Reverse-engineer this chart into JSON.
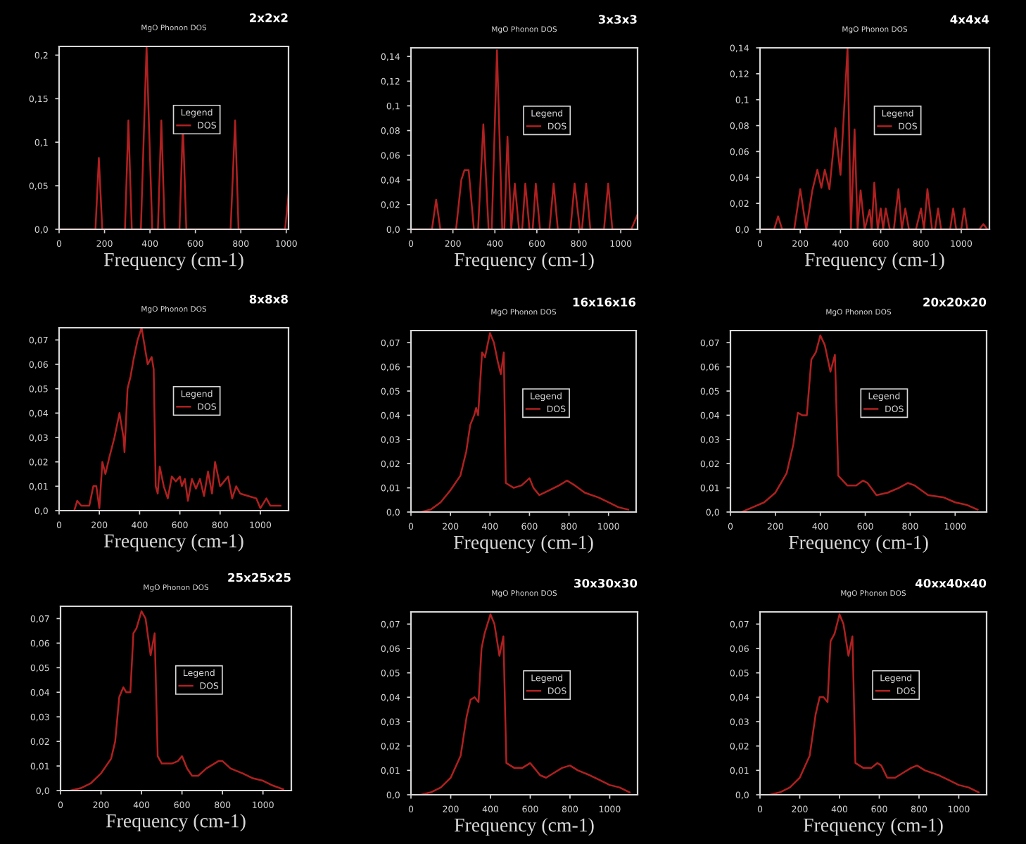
{
  "chart_data": [
    {
      "type": "line",
      "title": "MgO Phonon DOS",
      "subtitle": "2x2x2",
      "xlabel": "Frequency (cm-1)",
      "legend_title": "Legend",
      "legend": "center",
      "marker": "none",
      "line_style": "solid",
      "grid": false,
      "xlim": [
        0,
        1010
      ],
      "xticks": [
        0,
        200,
        400,
        600,
        800,
        1000
      ],
      "ylim": [
        0,
        0.21
      ],
      "yticks": [
        {
          "value": 0,
          "label": "0,0"
        },
        {
          "value": 0.05,
          "label": "0,05"
        },
        {
          "value": 0.1,
          "label": "0,1"
        },
        {
          "value": 0.15,
          "label": "0,15"
        },
        {
          "value": 0.2,
          "label": "0,2"
        }
      ],
      "series": [
        {
          "name": "DOS",
          "color": "#b02020",
          "x": [
            0,
            160,
            175,
            190,
            290,
            305,
            320,
            360,
            385,
            410,
            435,
            450,
            465,
            530,
            545,
            560,
            755,
            775,
            790,
            995,
            1010
          ],
          "values": [
            0,
            0,
            0.082,
            0,
            0,
            0.125,
            0,
            0,
            0.21,
            0,
            0,
            0.125,
            0,
            0,
            0.12,
            0,
            0,
            0.125,
            0,
            0,
            0.04
          ]
        }
      ]
    },
    {
      "type": "line",
      "title": "MgO Phonon DOS",
      "subtitle": "3x3x3",
      "xlabel": "Frequency (cm-1)",
      "legend_title": "Legend",
      "legend": "center",
      "marker": "none",
      "line_style": "solid",
      "grid": false,
      "xlim": [
        0,
        1080
      ],
      "xticks": [
        0,
        200,
        400,
        600,
        800,
        1000
      ],
      "ylim": [
        0,
        0.147
      ],
      "yticks": [
        {
          "value": 0,
          "label": "0,0"
        },
        {
          "value": 0.02,
          "label": "0,02"
        },
        {
          "value": 0.04,
          "label": "0,04"
        },
        {
          "value": 0.06,
          "label": "0,06"
        },
        {
          "value": 0.08,
          "label": "0,08"
        },
        {
          "value": 0.1,
          "label": "0,1"
        },
        {
          "value": 0.12,
          "label": "0,12"
        },
        {
          "value": 0.14,
          "label": "0,14"
        }
      ],
      "series": [
        {
          "name": "DOS",
          "color": "#b02020",
          "x": [
            0,
            100,
            120,
            140,
            215,
            240,
            255,
            275,
            300,
            320,
            345,
            370,
            385,
            410,
            435,
            445,
            460,
            478,
            495,
            515,
            530,
            545,
            565,
            580,
            595,
            615,
            660,
            680,
            700,
            760,
            780,
            805,
            815,
            835,
            855,
            920,
            940,
            960,
            1050,
            1080
          ],
          "values": [
            0,
            0,
            0.024,
            0,
            0,
            0.04,
            0.048,
            0.048,
            0,
            0,
            0.085,
            0,
            0,
            0.145,
            0,
            0,
            0.075,
            0,
            0.037,
            0,
            0,
            0.037,
            0,
            0,
            0.037,
            0,
            0,
            0.037,
            0,
            0,
            0.037,
            0,
            0,
            0.037,
            0,
            0,
            0.037,
            0,
            0,
            0.012
          ]
        }
      ]
    },
    {
      "type": "line",
      "title": "MgO Phonon DOS",
      "subtitle": "4x4x4",
      "xlabel": "Frequency (cm-1)",
      "legend_title": "Legend",
      "legend": "center",
      "marker": "none",
      "line_style": "solid",
      "grid": false,
      "xlim": [
        0,
        1140
      ],
      "xticks": [
        0,
        200,
        400,
        600,
        800,
        1000
      ],
      "ylim": [
        0,
        0.14
      ],
      "yticks": [
        {
          "value": 0,
          "label": "0,0"
        },
        {
          "value": 0.02,
          "label": "0,02"
        },
        {
          "value": 0.04,
          "label": "0,04"
        },
        {
          "value": 0.06,
          "label": "0,06"
        },
        {
          "value": 0.08,
          "label": "0,08"
        },
        {
          "value": 0.1,
          "label": "0,1"
        },
        {
          "value": 0.12,
          "label": "0,12"
        },
        {
          "value": 0.14,
          "label": "0,14"
        }
      ],
      "series": [
        {
          "name": "DOS",
          "color": "#b02020",
          "x": [
            0,
            70,
            90,
            110,
            170,
            200,
            230,
            260,
            285,
            305,
            322,
            345,
            375,
            400,
            435,
            452,
            470,
            485,
            500,
            520,
            545,
            555,
            568,
            585,
            600,
            612,
            625,
            645,
            665,
            688,
            705,
            722,
            740,
            775,
            800,
            815,
            832,
            855,
            870,
            885,
            900,
            945,
            960,
            975,
            1000,
            1015,
            1030,
            1090,
            1110,
            1130
          ],
          "values": [
            0,
            0,
            0.01,
            0,
            0,
            0.031,
            0,
            0.03,
            0.046,
            0.032,
            0.046,
            0.031,
            0.078,
            0.042,
            0.14,
            0,
            0.077,
            0,
            0.03,
            0,
            0.015,
            0,
            0.036,
            0,
            0.016,
            0,
            0.016,
            0,
            0,
            0.031,
            0,
            0.016,
            0,
            0,
            0.016,
            0,
            0.031,
            0,
            0,
            0.016,
            0,
            0,
            0.016,
            0,
            0,
            0.016,
            0,
            0,
            0.004,
            0
          ]
        }
      ]
    },
    {
      "type": "line",
      "title": "MgO Phonon DOS",
      "subtitle": "8x8x8",
      "xlabel": "Frequency (cm-1)",
      "legend_title": "Legend",
      "legend": "center",
      "marker": "none",
      "line_style": "solid",
      "grid": false,
      "xlim": [
        0,
        1140
      ],
      "xticks": [
        0,
        200,
        400,
        600,
        800,
        1000
      ],
      "ylim": [
        0,
        0.075
      ],
      "yticks": [
        {
          "value": 0,
          "label": "0,0"
        },
        {
          "value": 0.01,
          "label": "0,01"
        },
        {
          "value": 0.02,
          "label": "0,02"
        },
        {
          "value": 0.03,
          "label": "0,03"
        },
        {
          "value": 0.04,
          "label": "0,04"
        },
        {
          "value": 0.05,
          "label": "0,05"
        },
        {
          "value": 0.06,
          "label": "0,06"
        },
        {
          "value": 0.07,
          "label": "0,07"
        }
      ],
      "series": [
        {
          "name": "DOS",
          "color": "#b02020",
          "x": [
            75,
            90,
            110,
            150,
            170,
            185,
            200,
            215,
            230,
            250,
            275,
            300,
            320,
            325,
            340,
            355,
            370,
            390,
            410,
            420,
            440,
            460,
            470,
            480,
            490,
            500,
            520,
            540,
            560,
            580,
            600,
            610,
            625,
            640,
            660,
            680,
            700,
            720,
            740,
            760,
            775,
            800,
            820,
            840,
            860,
            880,
            900,
            940,
            980,
            1000,
            1030,
            1050,
            1100
          ],
          "values": [
            0,
            0.004,
            0.002,
            0.002,
            0.01,
            0.01,
            0.001,
            0.02,
            0.015,
            0.022,
            0.03,
            0.04,
            0.03,
            0.024,
            0.05,
            0.055,
            0.062,
            0.07,
            0.075,
            0.07,
            0.06,
            0.063,
            0.058,
            0.01,
            0.007,
            0.018,
            0.01,
            0.005,
            0.014,
            0.012,
            0.014,
            0.01,
            0.013,
            0.004,
            0.013,
            0.009,
            0.013,
            0.006,
            0.016,
            0.007,
            0.02,
            0.01,
            0.012,
            0.014,
            0.005,
            0.01,
            0.007,
            0.006,
            0.005,
            0.001,
            0.005,
            0.002,
            0.002
          ]
        }
      ]
    },
    {
      "type": "line",
      "title": "MgO Phonon DOS",
      "subtitle": "16x16x16",
      "xlabel": "Frequency (cm-1)",
      "legend_title": "Legend",
      "legend": "center",
      "marker": "none",
      "line_style": "solid",
      "grid": false,
      "xlim": [
        0,
        1140
      ],
      "xticks": [
        0,
        200,
        400,
        600,
        800,
        1000
      ],
      "ylim": [
        0,
        0.075
      ],
      "yticks": [
        {
          "value": 0,
          "label": "0,0"
        },
        {
          "value": 0.01,
          "label": "0,01"
        },
        {
          "value": 0.02,
          "label": "0,02"
        },
        {
          "value": 0.03,
          "label": "0,03"
        },
        {
          "value": 0.04,
          "label": "0,04"
        },
        {
          "value": 0.05,
          "label": "0,05"
        },
        {
          "value": 0.06,
          "label": "0,06"
        },
        {
          "value": 0.07,
          "label": "0,07"
        }
      ],
      "series": [
        {
          "name": "DOS",
          "color": "#b02020",
          "x": [
            50,
            100,
            150,
            200,
            250,
            280,
            300,
            320,
            330,
            340,
            360,
            375,
            390,
            400,
            420,
            440,
            455,
            470,
            480,
            520,
            560,
            600,
            620,
            650,
            700,
            750,
            790,
            830,
            880,
            950,
            1000,
            1050,
            1100
          ],
          "values": [
            0,
            0.001,
            0.004,
            0.009,
            0.015,
            0.025,
            0.036,
            0.04,
            0.043,
            0.04,
            0.066,
            0.064,
            0.07,
            0.074,
            0.07,
            0.062,
            0.057,
            0.066,
            0.012,
            0.01,
            0.011,
            0.014,
            0.01,
            0.007,
            0.009,
            0.011,
            0.013,
            0.011,
            0.008,
            0.006,
            0.004,
            0.002,
            0.001
          ]
        }
      ]
    },
    {
      "type": "line",
      "title": "MgO Phonon DOS",
      "subtitle": "20x20x20",
      "xlabel": "Frequency (cm-1)",
      "legend_title": "Legend",
      "legend": "center",
      "marker": "none",
      "line_style": "solid",
      "grid": false,
      "xlim": [
        0,
        1140
      ],
      "xticks": [
        0,
        200,
        400,
        600,
        800,
        1000
      ],
      "ylim": [
        0,
        0.075
      ],
      "yticks": [
        {
          "value": 0,
          "label": "0,0"
        },
        {
          "value": 0.01,
          "label": "0,01"
        },
        {
          "value": 0.02,
          "label": "0,02"
        },
        {
          "value": 0.03,
          "label": "0,03"
        },
        {
          "value": 0.04,
          "label": "0,04"
        },
        {
          "value": 0.05,
          "label": "0,05"
        },
        {
          "value": 0.06,
          "label": "0,06"
        },
        {
          "value": 0.07,
          "label": "0,07"
        }
      ],
      "series": [
        {
          "name": "DOS",
          "color": "#b02020",
          "x": [
            50,
            100,
            150,
            200,
            250,
            280,
            300,
            320,
            340,
            360,
            380,
            400,
            420,
            445,
            465,
            480,
            520,
            560,
            590,
            610,
            650,
            700,
            750,
            790,
            820,
            880,
            950,
            1000,
            1050,
            1100
          ],
          "values": [
            0,
            0.002,
            0.004,
            0.008,
            0.016,
            0.028,
            0.041,
            0.04,
            0.04,
            0.063,
            0.066,
            0.073,
            0.069,
            0.058,
            0.065,
            0.015,
            0.011,
            0.011,
            0.013,
            0.012,
            0.007,
            0.008,
            0.01,
            0.012,
            0.011,
            0.007,
            0.006,
            0.004,
            0.003,
            0.001
          ]
        }
      ]
    },
    {
      "type": "line",
      "title": "MgO Phonon DOS",
      "subtitle": "25x25x25",
      "xlabel": "Frequency (cm-1)",
      "legend_title": "Legend",
      "legend": "center",
      "marker": "none",
      "line_style": "solid",
      "grid": false,
      "xlim": [
        0,
        1140
      ],
      "xticks": [
        0,
        200,
        400,
        600,
        800,
        1000
      ],
      "ylim": [
        0,
        0.075
      ],
      "yticks": [
        {
          "value": 0,
          "label": "0,0"
        },
        {
          "value": 0.01,
          "label": "0,01"
        },
        {
          "value": 0.02,
          "label": "0,02"
        },
        {
          "value": 0.03,
          "label": "0,03"
        },
        {
          "value": 0.04,
          "label": "0,04"
        },
        {
          "value": 0.05,
          "label": "0,05"
        },
        {
          "value": 0.06,
          "label": "0,06"
        },
        {
          "value": 0.07,
          "label": "0,07"
        }
      ],
      "series": [
        {
          "name": "DOS",
          "color": "#b02020",
          "x": [
            50,
            100,
            150,
            200,
            250,
            270,
            290,
            310,
            325,
            345,
            360,
            375,
            400,
            420,
            445,
            465,
            480,
            500,
            550,
            580,
            600,
            625,
            650,
            680,
            720,
            780,
            800,
            840,
            900,
            950,
            1000,
            1050,
            1100
          ],
          "values": [
            0,
            0.001,
            0.003,
            0.007,
            0.013,
            0.02,
            0.038,
            0.042,
            0.04,
            0.04,
            0.064,
            0.066,
            0.073,
            0.07,
            0.055,
            0.064,
            0.014,
            0.011,
            0.011,
            0.012,
            0.014,
            0.009,
            0.006,
            0.006,
            0.009,
            0.012,
            0.012,
            0.009,
            0.007,
            0.005,
            0.004,
            0.002,
            0.0005
          ]
        }
      ]
    },
    {
      "type": "line",
      "title": "MgO Phonon DOS",
      "subtitle": "30x30x30",
      "xlabel": "Frequency (cm-1)",
      "legend_title": "Legend",
      "legend": "center",
      "marker": "none",
      "line_style": "solid",
      "grid": false,
      "xlim": [
        0,
        1140
      ],
      "xticks": [
        0,
        200,
        400,
        600,
        800,
        1000
      ],
      "ylim": [
        0,
        0.075
      ],
      "yticks": [
        {
          "value": 0,
          "label": "0,0"
        },
        {
          "value": 0.01,
          "label": "0,01"
        },
        {
          "value": 0.02,
          "label": "0,02"
        },
        {
          "value": 0.03,
          "label": "0,03"
        },
        {
          "value": 0.04,
          "label": "0,04"
        },
        {
          "value": 0.05,
          "label": "0,05"
        },
        {
          "value": 0.06,
          "label": "0,06"
        },
        {
          "value": 0.07,
          "label": "0,07"
        }
      ],
      "series": [
        {
          "name": "DOS",
          "color": "#b02020",
          "x": [
            50,
            100,
            150,
            200,
            250,
            280,
            300,
            320,
            340,
            355,
            370,
            400,
            420,
            445,
            465,
            480,
            520,
            560,
            600,
            620,
            650,
            680,
            720,
            760,
            800,
            840,
            900,
            950,
            1000,
            1050,
            1100
          ],
          "values": [
            0,
            0.001,
            0.003,
            0.007,
            0.016,
            0.032,
            0.039,
            0.04,
            0.038,
            0.06,
            0.066,
            0.074,
            0.07,
            0.057,
            0.065,
            0.013,
            0.011,
            0.011,
            0.013,
            0.011,
            0.008,
            0.007,
            0.009,
            0.011,
            0.012,
            0.01,
            0.008,
            0.006,
            0.004,
            0.003,
            0.001
          ]
        }
      ]
    },
    {
      "type": "line",
      "title": "MgO Phonon DOS",
      "subtitle": "40xx40x40",
      "xlabel": "Frequency (cm-1)",
      "legend_title": "Legend",
      "legend": "center",
      "marker": "none",
      "line_style": "solid",
      "grid": false,
      "xlim": [
        0,
        1140
      ],
      "xticks": [
        0,
        200,
        400,
        600,
        800,
        1000
      ],
      "ylim": [
        0,
        0.075
      ],
      "yticks": [
        {
          "value": 0,
          "label": "0,0"
        },
        {
          "value": 0.01,
          "label": "0,01"
        },
        {
          "value": 0.02,
          "label": "0,02"
        },
        {
          "value": 0.03,
          "label": "0,03"
        },
        {
          "value": 0.04,
          "label": "0,04"
        },
        {
          "value": 0.05,
          "label": "0,05"
        },
        {
          "value": 0.06,
          "label": "0,06"
        },
        {
          "value": 0.07,
          "label": "0,07"
        }
      ],
      "series": [
        {
          "name": "DOS",
          "color": "#b02020",
          "x": [
            50,
            100,
            150,
            200,
            250,
            280,
            300,
            320,
            340,
            355,
            375,
            400,
            420,
            445,
            465,
            480,
            520,
            560,
            590,
            610,
            640,
            680,
            720,
            760,
            790,
            830,
            900,
            950,
            1000,
            1050,
            1100
          ],
          "values": [
            0,
            0.001,
            0.003,
            0.007,
            0.016,
            0.033,
            0.04,
            0.04,
            0.038,
            0.063,
            0.066,
            0.074,
            0.07,
            0.057,
            0.065,
            0.013,
            0.011,
            0.011,
            0.013,
            0.012,
            0.007,
            0.007,
            0.009,
            0.011,
            0.012,
            0.01,
            0.008,
            0.006,
            0.004,
            0.003,
            0.001
          ]
        }
      ]
    }
  ]
}
